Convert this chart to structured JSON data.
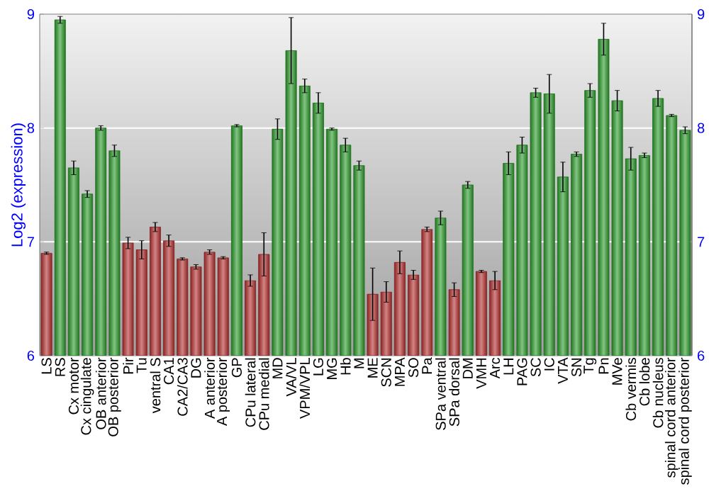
{
  "chart_data": {
    "type": "bar",
    "ylabel": "Log2 (expression)",
    "categories": [
      "LS",
      "RS",
      "Cx motor",
      "Cx cingulate",
      "OB anterior",
      "OB posterior",
      "Pir",
      "Tu",
      "ventral S",
      "CA1",
      "CA2/CA3",
      "DG",
      "A anterior",
      "A posterior",
      "GP",
      "CPu lateral",
      "CPu medial",
      "MD",
      "VA/VL",
      "VPM/VPL",
      "LG",
      "MG",
      "Hb",
      "M",
      "ME",
      "SCN",
      "MPA",
      "SO",
      "Pa",
      "SPa ventral",
      "SPa dorsal",
      "DM",
      "VMH",
      "Arc",
      "LH",
      "PAG",
      "SC",
      "IC",
      "VTA",
      "SN",
      "Tg",
      "Pn",
      "MVe",
      "Cb vermis",
      "Cb lobe",
      "Cb nucleus",
      "spinal cord anterior",
      "spinal cord posterior"
    ],
    "values": [
      6.9,
      8.95,
      7.65,
      7.42,
      8.0,
      7.8,
      6.99,
      6.93,
      7.13,
      7.01,
      6.85,
      6.78,
      6.91,
      6.86,
      8.02,
      6.66,
      6.89,
      7.99,
      8.68,
      8.37,
      8.22,
      7.99,
      7.85,
      7.67,
      6.54,
      6.56,
      6.82,
      6.71,
      7.11,
      7.21,
      6.58,
      7.5,
      6.74,
      6.66,
      7.69,
      7.85,
      8.31,
      8.3,
      7.57,
      7.77,
      8.33,
      8.78,
      8.24,
      7.73,
      7.76,
      8.26,
      8.11,
      7.98
    ],
    "errors": [
      0.01,
      0.03,
      0.06,
      0.03,
      0.02,
      0.05,
      0.05,
      0.08,
      0.04,
      0.05,
      0.01,
      0.02,
      0.02,
      0.01,
      0.01,
      0.05,
      0.19,
      0.09,
      0.29,
      0.06,
      0.09,
      0.01,
      0.06,
      0.04,
      0.23,
      0.09,
      0.1,
      0.04,
      0.02,
      0.06,
      0.06,
      0.03,
      0.01,
      0.08,
      0.1,
      0.07,
      0.04,
      0.17,
      0.13,
      0.02,
      0.06,
      0.14,
      0.09,
      0.1,
      0.02,
      0.07,
      0.01,
      0.03
    ],
    "colors": [
      "#b83232",
      "#2e9e2e",
      "#2e9e2e",
      "#2e9e2e",
      "#2e9e2e",
      "#2e9e2e",
      "#b83232",
      "#b83232",
      "#b83232",
      "#b83232",
      "#b83232",
      "#b83232",
      "#b83232",
      "#b83232",
      "#2e9e2e",
      "#b83232",
      "#b83232",
      "#2e9e2e",
      "#2e9e2e",
      "#2e9e2e",
      "#2e9e2e",
      "#2e9e2e",
      "#2e9e2e",
      "#2e9e2e",
      "#b83232",
      "#b83232",
      "#b83232",
      "#b83232",
      "#b83232",
      "#2e9e2e",
      "#b83232",
      "#2e9e2e",
      "#b83232",
      "#b83232",
      "#2e9e2e",
      "#2e9e2e",
      "#2e9e2e",
      "#2e9e2e",
      "#2e9e2e",
      "#2e9e2e",
      "#2e9e2e",
      "#2e9e2e",
      "#2e9e2e",
      "#2e9e2e",
      "#2e9e2e",
      "#2e9e2e",
      "#2e9e2e",
      "#2e9e2e"
    ],
    "ylim": [
      6,
      9
    ],
    "yticks": [
      6,
      7,
      8,
      9
    ],
    "y2lim": [
      6,
      9
    ],
    "y2ticks": [
      6,
      7,
      8,
      9
    ],
    "grid": "y"
  }
}
